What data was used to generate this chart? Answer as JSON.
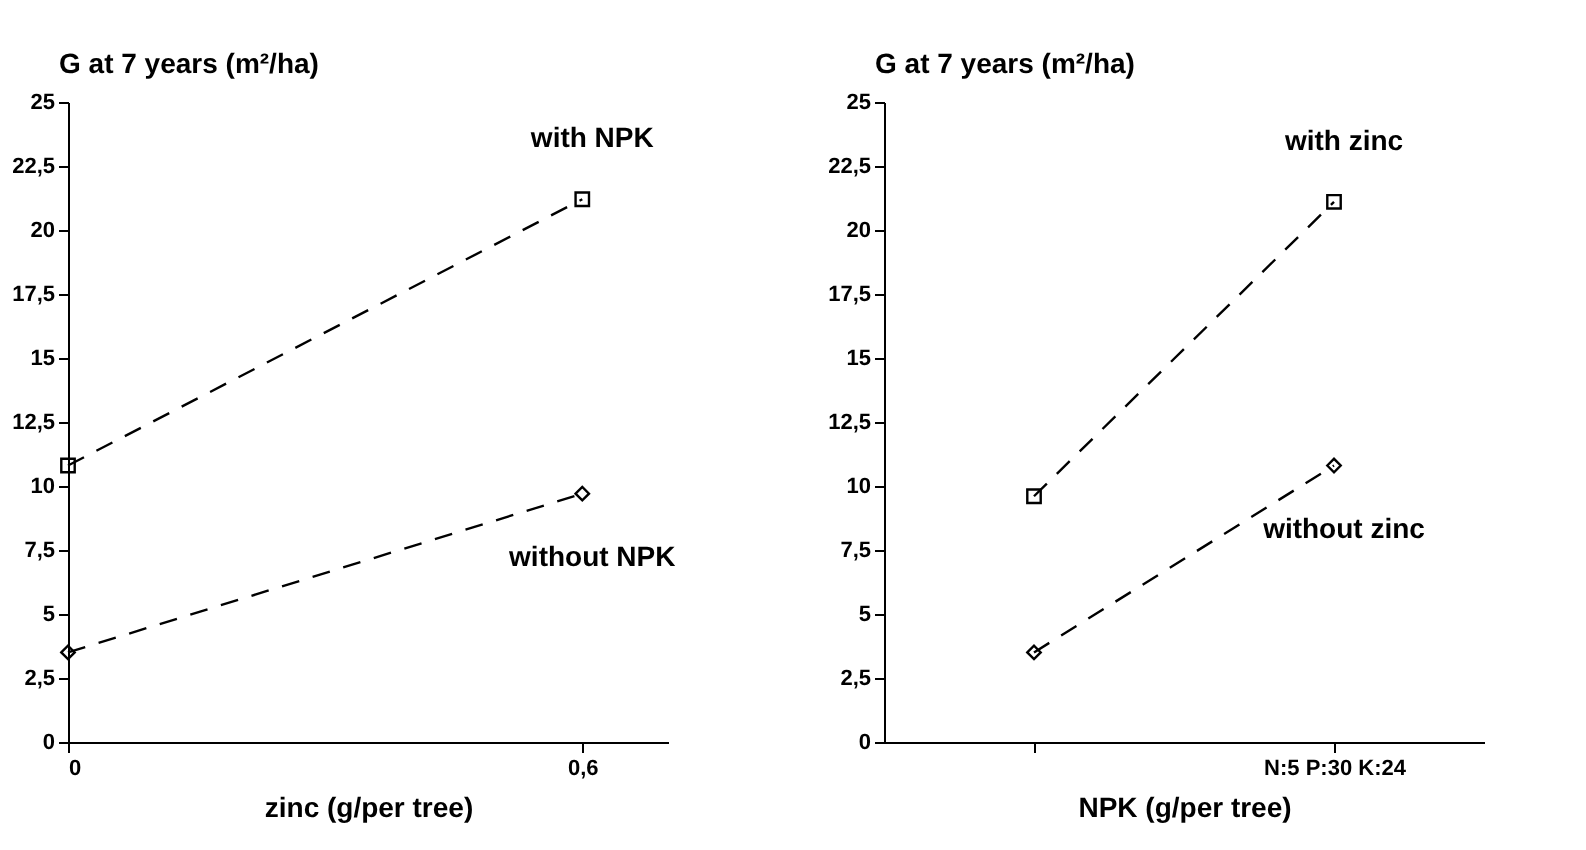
{
  "chart_data": [
    {
      "type": "line",
      "ylabel": "G at 7 years (m²/ha)",
      "xlabel": "zinc (g/per tree)",
      "x": [
        0,
        0.6
      ],
      "xlim": [
        0,
        0.7
      ],
      "xticks": [
        0,
        {
          "value": 0.6,
          "label": "0,6"
        }
      ],
      "ylim": [
        0,
        25
      ],
      "yticks": [
        0,
        {
          "value": 2.5,
          "label": "2,5"
        },
        5,
        {
          "value": 7.5,
          "label": "7,5"
        },
        10,
        {
          "value": 12.5,
          "label": "12,5"
        },
        15,
        {
          "value": 17.5,
          "label": "17,5"
        },
        20,
        {
          "value": 22.5,
          "label": "22,5"
        },
        25
      ],
      "line_style": "dashed",
      "series": [
        {
          "name": "with NPK",
          "color": "#000000",
          "marker": "square",
          "values": [
            10.8,
            21.2
          ]
        },
        {
          "name": "without NPK",
          "color": "#000000",
          "marker": "diamond",
          "values": [
            3.5,
            9.7
          ]
        }
      ]
    },
    {
      "type": "line",
      "ylabel": "G at 7 years (m²/ha)",
      "xlabel": "NPK (g/per tree)",
      "categories": [
        null,
        "N:5 P:30 K:24"
      ],
      "ylim": [
        0,
        25
      ],
      "yticks": [
        0,
        {
          "value": 2.5,
          "label": "2,5"
        },
        5,
        {
          "value": 7.5,
          "label": "7,5"
        },
        10,
        {
          "value": 12.5,
          "label": "12,5"
        },
        15,
        {
          "value": 17.5,
          "label": "17,5"
        },
        20,
        {
          "value": 22.5,
          "label": "22,5"
        },
        25
      ],
      "line_style": "dashed",
      "series": [
        {
          "name": "with zinc",
          "color": "#000000",
          "marker": "square",
          "values": [
            9.6,
            21.1
          ]
        },
        {
          "name": "without zinc",
          "color": "#000000",
          "marker": "diamond",
          "values": [
            3.5,
            10.8
          ]
        }
      ]
    }
  ]
}
